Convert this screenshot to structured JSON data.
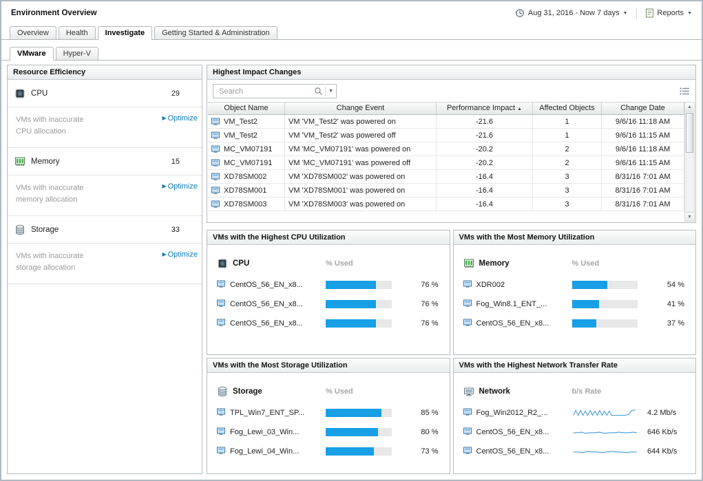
{
  "header": {
    "title": "Environment Overview",
    "time_range": "Aug 31, 2016 - Now 7 days",
    "reports": "Reports"
  },
  "tabs": [
    {
      "label": "Overview"
    },
    {
      "label": "Health"
    },
    {
      "label": "Investigate"
    },
    {
      "label": "Getting Started & Administration"
    }
  ],
  "subtabs": [
    {
      "label": "VMware"
    },
    {
      "label": "Hyper-V"
    }
  ],
  "resource_efficiency": {
    "title": "Resource Efficiency",
    "metrics": [
      {
        "name": "CPU",
        "value": "29",
        "note_line1": "VMs with inaccurate",
        "note_line2": "CPU allocation",
        "action": "Optimize"
      },
      {
        "name": "Memory",
        "value": "15",
        "note_line1": "VMs with inaccurate",
        "note_line2": "memory allocation",
        "action": "Optimize"
      },
      {
        "name": "Storage",
        "value": "33",
        "note_line1": "VMs with inaccurate",
        "note_line2": "storage allocation",
        "action": "Optimize"
      }
    ]
  },
  "impact_changes": {
    "title": "Highest Impact Changes",
    "search_placeholder": "Search",
    "columns": {
      "object": "Object Name",
      "event": "Change Event",
      "impact": "Performance Impact",
      "affected": "Affected Objects",
      "date": "Change Date"
    },
    "sort_indicator": "▲",
    "rows": [
      {
        "object": "VM_Test2",
        "event": "VM 'VM_Test2' was powered on",
        "impact": "-21.6",
        "affected": "1",
        "date": "9/6/16 11:18 AM"
      },
      {
        "object": "VM_Test2",
        "event": "VM 'VM_Test2' was powered off",
        "impact": "-21.6",
        "affected": "1",
        "date": "9/6/16 11:15 AM"
      },
      {
        "object": "MC_VM07191",
        "event": "VM 'MC_VM07191' was powered on",
        "impact": "-20.2",
        "affected": "2",
        "date": "9/6/16 11:18 AM"
      },
      {
        "object": "MC_VM07191",
        "event": "VM 'MC_VM07191' was powered off",
        "impact": "-20.2",
        "affected": "2",
        "date": "9/6/16 11:15 AM"
      },
      {
        "object": "XD78SM002",
        "event": "VM 'XD78SM002' was powered on",
        "impact": "-16.4",
        "affected": "3",
        "date": "8/31/16 7:01 AM"
      },
      {
        "object": "XD78SM001",
        "event": "VM 'XD78SM001' was powered on",
        "impact": "-16.4",
        "affected": "3",
        "date": "8/31/16 7:01 AM"
      },
      {
        "object": "XD78SM003",
        "event": "VM 'XD78SM003' was powered on",
        "impact": "-16.4",
        "affected": "3",
        "date": "8/31/16 7:01 AM"
      }
    ]
  },
  "cpu_panel": {
    "title": "VMs with the Highest CPU Utilization",
    "resource": "CPU",
    "col_label": "% Used",
    "rows": [
      {
        "name": "CentOS_56_EN_x8...",
        "percent": 76,
        "value": "76 %"
      },
      {
        "name": "CentOS_56_EN_x8...",
        "percent": 76,
        "value": "76 %"
      },
      {
        "name": "CentOS_56_EN_x8...",
        "percent": 76,
        "value": "76 %"
      }
    ]
  },
  "memory_panel": {
    "title": "VMs with the Most Memory Utilization",
    "resource": "Memory",
    "col_label": "% Used",
    "rows": [
      {
        "name": "XDR002",
        "percent": 54,
        "value": "54 %"
      },
      {
        "name": "Fog_Win8.1_ENT_...",
        "percent": 41,
        "value": "41 %"
      },
      {
        "name": "CentOS_56_EN_x8...",
        "percent": 37,
        "value": "37 %"
      }
    ]
  },
  "storage_panel": {
    "title": "VMs with the Most Storage Utilization",
    "resource": "Storage",
    "col_label": "% Used",
    "rows": [
      {
        "name": "TPL_Win7_ENT_SP...",
        "percent": 85,
        "value": "85 %"
      },
      {
        "name": "Fog_Lewi_03_Win...",
        "percent": 80,
        "value": "80 %"
      },
      {
        "name": "Fog_Lewi_04_Win...",
        "percent": 73,
        "value": "73 %"
      }
    ]
  },
  "network_panel": {
    "title": "VMs with the Highest Network Transfer Rate",
    "resource": "Network",
    "col_label": "b/s Rate",
    "rows": [
      {
        "name": "Fog_Win2012_R2_...",
        "value": "4.2 Mb/s"
      },
      {
        "name": "CentOS_56_EN_x8...",
        "value": "646 Kb/s"
      },
      {
        "name": "CentOS_56_EN_x8...",
        "value": "644 Kb/s"
      }
    ]
  },
  "colors": {
    "bar_fill": "#189fe5",
    "link": "#0b7ab8"
  }
}
